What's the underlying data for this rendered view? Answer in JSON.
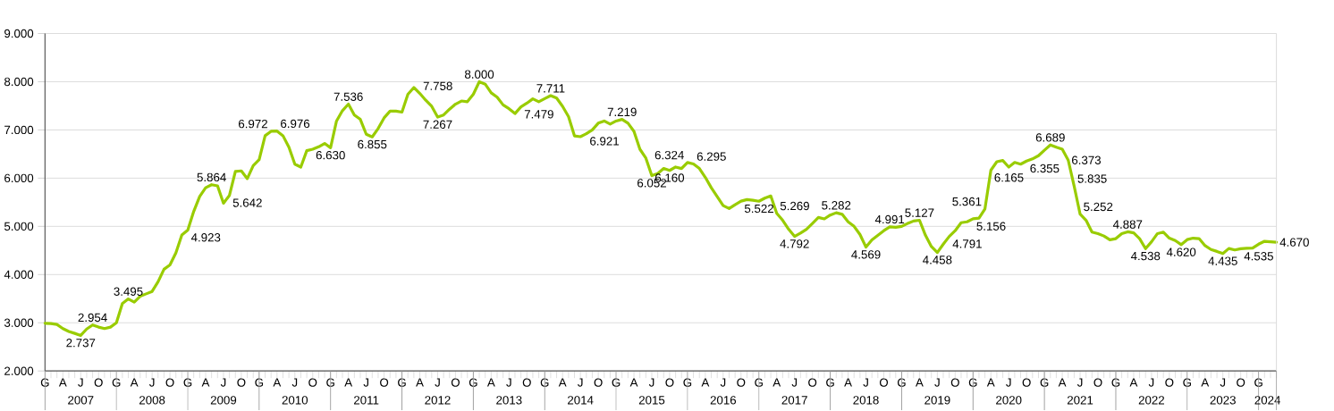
{
  "chart_data": {
    "type": "line",
    "categories": [
      "G",
      null,
      null,
      "A",
      null,
      null,
      "J",
      null,
      null,
      "O",
      null,
      null,
      "G",
      null,
      null,
      "A",
      null,
      null,
      "J",
      null,
      null,
      "O",
      null,
      null,
      "G",
      null,
      null,
      "A",
      null,
      null,
      "J",
      null,
      null,
      "O",
      null,
      null,
      "G",
      null,
      null,
      "A",
      null,
      null,
      "J",
      null,
      null,
      "O",
      null,
      null,
      "G",
      null,
      null,
      "A",
      null,
      null,
      "J",
      null,
      null,
      "O",
      null,
      null,
      "G",
      null,
      null,
      "A",
      null,
      null,
      "J",
      null,
      null,
      "O",
      null,
      null,
      "G",
      null,
      null,
      "A",
      null,
      null,
      "J",
      null,
      null,
      "O",
      null,
      null,
      "G",
      null,
      null,
      "A",
      null,
      null,
      "J",
      null,
      null,
      "O",
      null,
      null,
      "G",
      null,
      null,
      "A",
      null,
      null,
      "J",
      null,
      null,
      "O",
      null,
      null,
      "G",
      null,
      null,
      "A",
      null,
      null,
      "J",
      null,
      null,
      "O",
      null,
      null,
      "G",
      null,
      null,
      "A",
      null,
      null,
      "J",
      null,
      null,
      "O",
      null,
      null,
      "G",
      null,
      null,
      "A",
      null,
      null,
      "J",
      null,
      null,
      "O",
      null,
      null,
      "G",
      null,
      null,
      "A",
      null,
      null,
      "J",
      null,
      null,
      "O",
      null,
      null,
      "G",
      null,
      null,
      "A",
      null,
      null,
      "J",
      null,
      null,
      "O",
      null,
      null,
      "G",
      null,
      null,
      "A",
      null,
      null,
      "J",
      null,
      null,
      "O",
      null,
      null,
      "G",
      null,
      null,
      "A",
      null,
      null,
      "J",
      null,
      null,
      "O",
      null,
      null,
      "G",
      null,
      null,
      "A",
      null,
      null,
      "J",
      null,
      null,
      "O",
      null,
      null,
      "G",
      null,
      null,
      null
    ],
    "values": [
      2990,
      2985,
      2965,
      2880,
      2820,
      2780,
      2737,
      2870,
      2954,
      2910,
      2880,
      2910,
      3000,
      3400,
      3495,
      3430,
      3550,
      3600,
      3650,
      3850,
      4110,
      4200,
      4450,
      4820,
      4923,
      5310,
      5620,
      5800,
      5864,
      5840,
      5480,
      5642,
      6140,
      6150,
      5990,
      6260,
      6385,
      6880,
      6972,
      6976,
      6880,
      6640,
      6290,
      6230,
      6570,
      6600,
      6650,
      6720,
      6630,
      7185,
      7400,
      7536,
      7310,
      7220,
      6910,
      6855,
      7030,
      7250,
      7390,
      7390,
      7370,
      7740,
      7880,
      7758,
      7615,
      7490,
      7267,
      7310,
      7430,
      7535,
      7600,
      7585,
      7740,
      8000,
      7950,
      7770,
      7680,
      7520,
      7440,
      7340,
      7479,
      7555,
      7645,
      7585,
      7650,
      7711,
      7660,
      7490,
      7277,
      6877,
      6860,
      6921,
      7000,
      7140,
      7185,
      7120,
      7185,
      7219,
      7140,
      6970,
      6600,
      6415,
      6052,
      6095,
      6200,
      6160,
      6230,
      6200,
      6324,
      6295,
      6200,
      6015,
      5800,
      5615,
      5430,
      5370,
      5450,
      5522,
      5555,
      5540,
      5520,
      5585,
      5630,
      5269,
      5125,
      4940,
      4792,
      4860,
      4940,
      5060,
      5185,
      5155,
      5235,
      5282,
      5250,
      5095,
      5000,
      4830,
      4569,
      4720,
      4815,
      4910,
      4991,
      4980,
      5000,
      5060,
      5110,
      5127,
      4815,
      4580,
      4458,
      4630,
      4791,
      4910,
      5075,
      5095,
      5156,
      5170,
      5361,
      6165,
      6340,
      6365,
      6230,
      6325,
      6290,
      6355,
      6400,
      6465,
      6580,
      6689,
      6640,
      6600,
      6373,
      5835,
      5252,
      5125,
      4880,
      4850,
      4800,
      4720,
      4745,
      4850,
      4887,
      4865,
      4745,
      4538,
      4680,
      4850,
      4880,
      4755,
      4705,
      4620,
      4725,
      4755,
      4745,
      4600,
      4520,
      4480,
      4435,
      4540,
      4510,
      4535,
      4545,
      4550,
      4630,
      4690,
      4680,
      4670
    ],
    "value_labels": [
      null,
      null,
      null,
      null,
      null,
      null,
      "2.737",
      null,
      "2.954",
      null,
      null,
      null,
      null,
      null,
      "3.495",
      null,
      null,
      null,
      null,
      null,
      null,
      null,
      null,
      null,
      "4.923",
      null,
      null,
      null,
      "5.864",
      null,
      null,
      "5.642",
      null,
      null,
      null,
      null,
      null,
      null,
      "6.972",
      "6.976",
      null,
      null,
      null,
      null,
      null,
      null,
      null,
      null,
      "6.630",
      null,
      null,
      "7.536",
      null,
      null,
      null,
      "6.855",
      null,
      null,
      null,
      null,
      null,
      null,
      null,
      "7.758",
      null,
      null,
      "7.267",
      null,
      null,
      null,
      null,
      null,
      null,
      "8.000",
      null,
      null,
      null,
      null,
      null,
      null,
      "7.479",
      null,
      null,
      null,
      null,
      "7.711",
      null,
      null,
      null,
      null,
      null,
      "6.921",
      null,
      null,
      null,
      null,
      null,
      "7.219",
      null,
      null,
      null,
      null,
      "6.052",
      null,
      null,
      "6.160",
      null,
      null,
      "6.324",
      "6.295",
      null,
      null,
      null,
      null,
      null,
      null,
      null,
      "5.522",
      null,
      null,
      null,
      null,
      null,
      "5.269",
      null,
      null,
      "4.792",
      null,
      null,
      null,
      null,
      null,
      null,
      "5.282",
      null,
      null,
      null,
      null,
      "4.569",
      null,
      null,
      null,
      "4.991",
      null,
      null,
      null,
      null,
      "5.127",
      null,
      null,
      "4.458",
      null,
      "4.791",
      null,
      null,
      null,
      "5.156",
      null,
      "5.361",
      "6.165",
      null,
      null,
      null,
      null,
      null,
      "6.355",
      null,
      null,
      null,
      "6.689",
      null,
      null,
      "6.373",
      "5.835",
      "5.252",
      null,
      null,
      null,
      null,
      null,
      null,
      null,
      "4.887",
      null,
      null,
      "4.538",
      null,
      null,
      null,
      null,
      null,
      "4.620",
      null,
      null,
      null,
      null,
      null,
      null,
      "4.435",
      null,
      null,
      "4.535",
      null,
      null,
      null,
      null,
      null,
      "4.670"
    ],
    "color": "#99cc00",
    "ylim": [
      2000,
      9000
    ],
    "yticks": [
      {
        "value": 2000,
        "label": "2.000"
      },
      {
        "value": 3000,
        "label": "3.000"
      },
      {
        "value": 4000,
        "label": "4.000"
      },
      {
        "value": 5000,
        "label": "5.000"
      },
      {
        "value": 6000,
        "label": "6.000"
      },
      {
        "value": 7000,
        "label": "7.000"
      },
      {
        "value": 8000,
        "label": "8.000"
      },
      {
        "value": 9000,
        "label": "9.000"
      }
    ],
    "grid": "y",
    "annotations": [
      "2007",
      "2008",
      "2009",
      "2010",
      "2011",
      "2012",
      "2013",
      "2014",
      "2015",
      "2016",
      "2017",
      "2018",
      "2019",
      "2020",
      "2021",
      "2022",
      "2023",
      "2024"
    ]
  }
}
